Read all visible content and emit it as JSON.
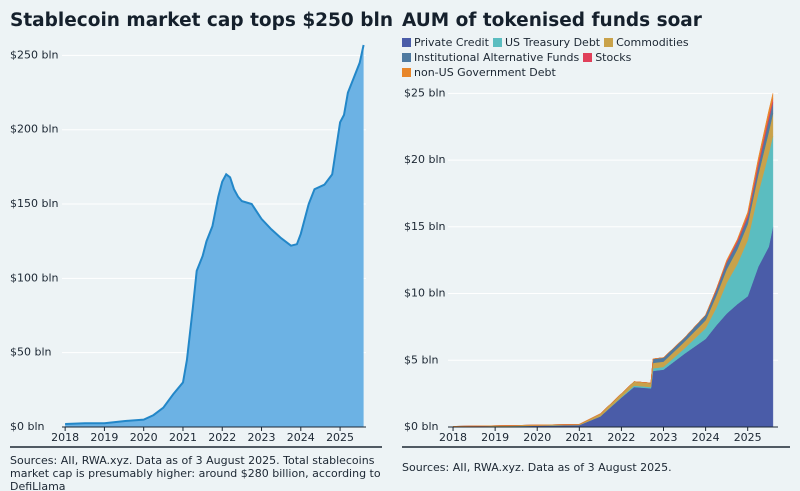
{
  "chart_data": [
    {
      "type": "area",
      "title": "Stablecoin market cap tops $250 bln",
      "note": "Sources: AII, RWA.xyz. Data as of 3 August 2025. Total stablecoins market cap is presumably higher: around $280 billion, according to DefiLlama",
      "x": [
        2018.0,
        2018.5,
        2019.0,
        2019.5,
        2020.0,
        2020.25,
        2020.5,
        2020.75,
        2021.0,
        2021.1,
        2021.25,
        2021.35,
        2021.5,
        2021.6,
        2021.75,
        2021.9,
        2022.0,
        2022.1,
        2022.2,
        2022.3,
        2022.4,
        2022.5,
        2022.75,
        2023.0,
        2023.25,
        2023.5,
        2023.75,
        2023.9,
        2024.0,
        2024.2,
        2024.35,
        2024.6,
        2024.8,
        2025.0,
        2025.1,
        2025.2,
        2025.35,
        2025.5,
        2025.6
      ],
      "values": [
        2,
        2.5,
        2.5,
        4,
        5,
        8,
        13,
        22,
        30,
        45,
        80,
        105,
        115,
        125,
        135,
        155,
        165,
        170,
        168,
        160,
        155,
        152,
        150,
        140,
        133,
        127,
        122,
        123,
        130,
        150,
        160,
        163,
        170,
        205,
        210,
        225,
        235,
        245,
        257
      ],
      "color": "#6cb2e4",
      "line_color": "#2387c8",
      "xlim": [
        2017.92,
        2025.66
      ],
      "xticks": [
        2018,
        2019,
        2020,
        2021,
        2022,
        2023,
        2024,
        2025
      ],
      "ylim": [
        0,
        257
      ],
      "yticks": [
        {
          "value": 0,
          "label": "$0 bln"
        },
        {
          "value": 50,
          "label": "$50 bln"
        },
        {
          "value": 100,
          "label": "$100 bln"
        },
        {
          "value": 150,
          "label": "$150 bln"
        },
        {
          "value": 200,
          "label": "$200 bln"
        },
        {
          "value": 250,
          "label": "$250 bln"
        }
      ],
      "grid": true
    },
    {
      "type": "stacked_area",
      "title": "AUM of tokenised funds soar",
      "note": "Sources: AII, RWA.xyz. Data as of 3 August 2025.",
      "x": [
        2018.0,
        2019.0,
        2020.0,
        2021.0,
        2021.5,
        2022.0,
        2022.3,
        2022.7,
        2022.75,
        2023.0,
        2023.5,
        2024.0,
        2024.25,
        2024.5,
        2024.75,
        2025.0,
        2025.25,
        2025.5,
        2025.6
      ],
      "series": [
        {
          "name": "Private Credit",
          "color": "#4a5ca8",
          "values": [
            0,
            0.05,
            0.1,
            0.15,
            0.8,
            2.2,
            3.0,
            2.9,
            4.2,
            4.3,
            5.5,
            6.6,
            7.6,
            8.5,
            9.2,
            9.8,
            12.0,
            13.5,
            15.0
          ]
        },
        {
          "name": "US Treasury Debt",
          "color": "#5bbdc0",
          "values": [
            0,
            0,
            0,
            0,
            0,
            0.05,
            0.1,
            0.1,
            0.2,
            0.2,
            0.4,
            0.8,
            1.3,
            2.3,
            3.0,
            4.2,
            5.5,
            7.0,
            6.8
          ]
        },
        {
          "name": "Commodities",
          "color": "#c9a24a",
          "values": [
            0.05,
            0.05,
            0.05,
            0.05,
            0.2,
            0.25,
            0.3,
            0.3,
            0.4,
            0.4,
            0.5,
            0.6,
            0.9,
            1.0,
            1.1,
            1.2,
            1.4,
            1.6,
            1.7
          ]
        },
        {
          "name": "Institutional Alternative Funds",
          "color": "#4f7aa0",
          "values": [
            0,
            0,
            0,
            0,
            0,
            0,
            0,
            0,
            0.3,
            0.3,
            0.3,
            0.4,
            0.4,
            0.5,
            0.5,
            0.5,
            0.6,
            0.9,
            0.8
          ]
        },
        {
          "name": "Stocks",
          "color": "#e0405a",
          "values": [
            0,
            0,
            0,
            0,
            0,
            0,
            0,
            0,
            0,
            0,
            0,
            0,
            0.1,
            0.1,
            0.15,
            0.2,
            0.3,
            0.3,
            0.3
          ]
        },
        {
          "name": "non-US Government Debt",
          "color": "#e8862a",
          "values": [
            0,
            0,
            0,
            0,
            0,
            0,
            0,
            0,
            0,
            0,
            0,
            0,
            0,
            0.1,
            0.1,
            0.2,
            0.3,
            0.4,
            0.4
          ]
        }
      ],
      "xlim": [
        2017.88,
        2025.72
      ],
      "xticks": [
        2018,
        2019,
        2020,
        2021,
        2022,
        2023,
        2024,
        2025
      ],
      "ylim": [
        0,
        25.4
      ],
      "yticks": [
        {
          "value": 0,
          "label": "$0 bln"
        },
        {
          "value": 5,
          "label": "$5 bln"
        },
        {
          "value": 10,
          "label": "$10 bln"
        },
        {
          "value": 15,
          "label": "$15 bln"
        },
        {
          "value": 20,
          "label": "$20 bln"
        },
        {
          "value": 25,
          "label": "$25 bln"
        }
      ],
      "grid": true
    }
  ]
}
